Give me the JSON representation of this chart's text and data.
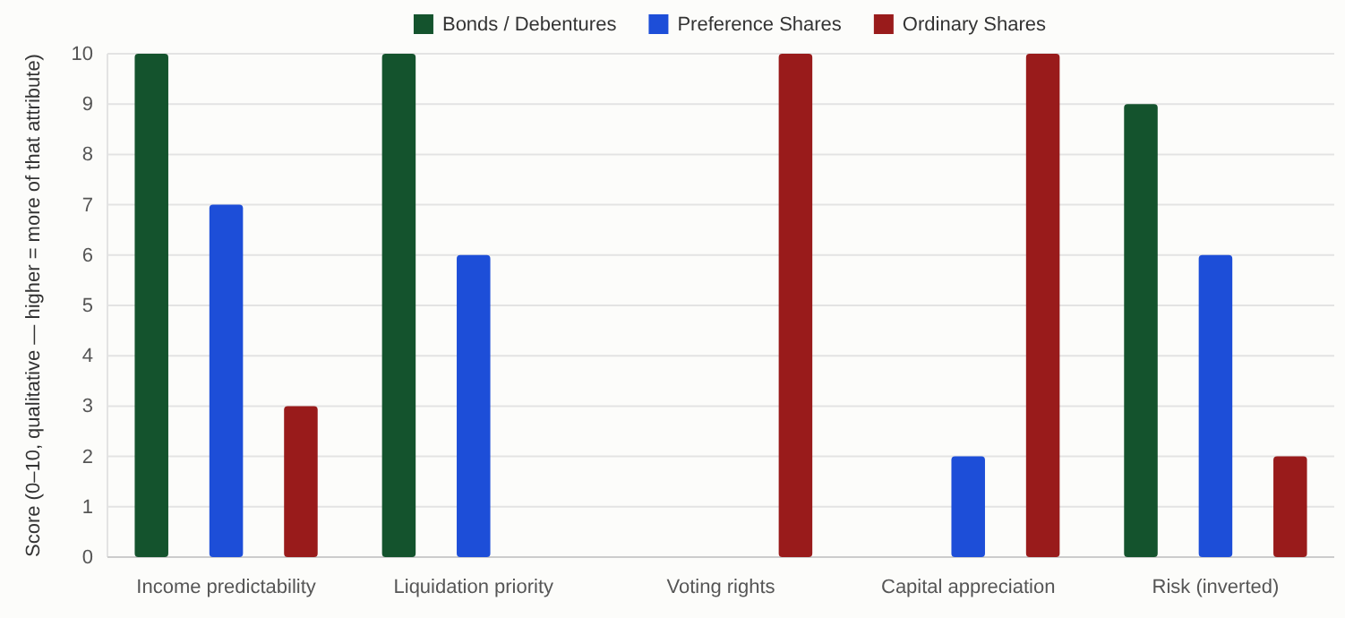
{
  "chart_data": {
    "type": "bar",
    "ylabel": "Score (0–10, qualitative — higher = more of that attribute)",
    "categories": [
      "Income predictability",
      "Liquidation priority",
      "Voting rights",
      "Capital appreciation",
      "Risk (inverted)"
    ],
    "series": [
      {
        "name": "Bonds / Debentures",
        "color": "#14532d",
        "values": [
          10,
          10,
          0,
          0,
          9
        ]
      },
      {
        "name": "Preference Shares",
        "color": "#1d4ed8",
        "values": [
          7,
          6,
          0,
          2,
          6
        ]
      },
      {
        "name": "Ordinary Shares",
        "color": "#991b1b",
        "values": [
          3,
          0,
          10,
          10,
          2
        ]
      }
    ],
    "ylim": [
      0,
      10
    ],
    "yticks": [
      0,
      1,
      2,
      3,
      4,
      5,
      6,
      7,
      8,
      9,
      10
    ],
    "grid": "y",
    "legend": "top"
  }
}
